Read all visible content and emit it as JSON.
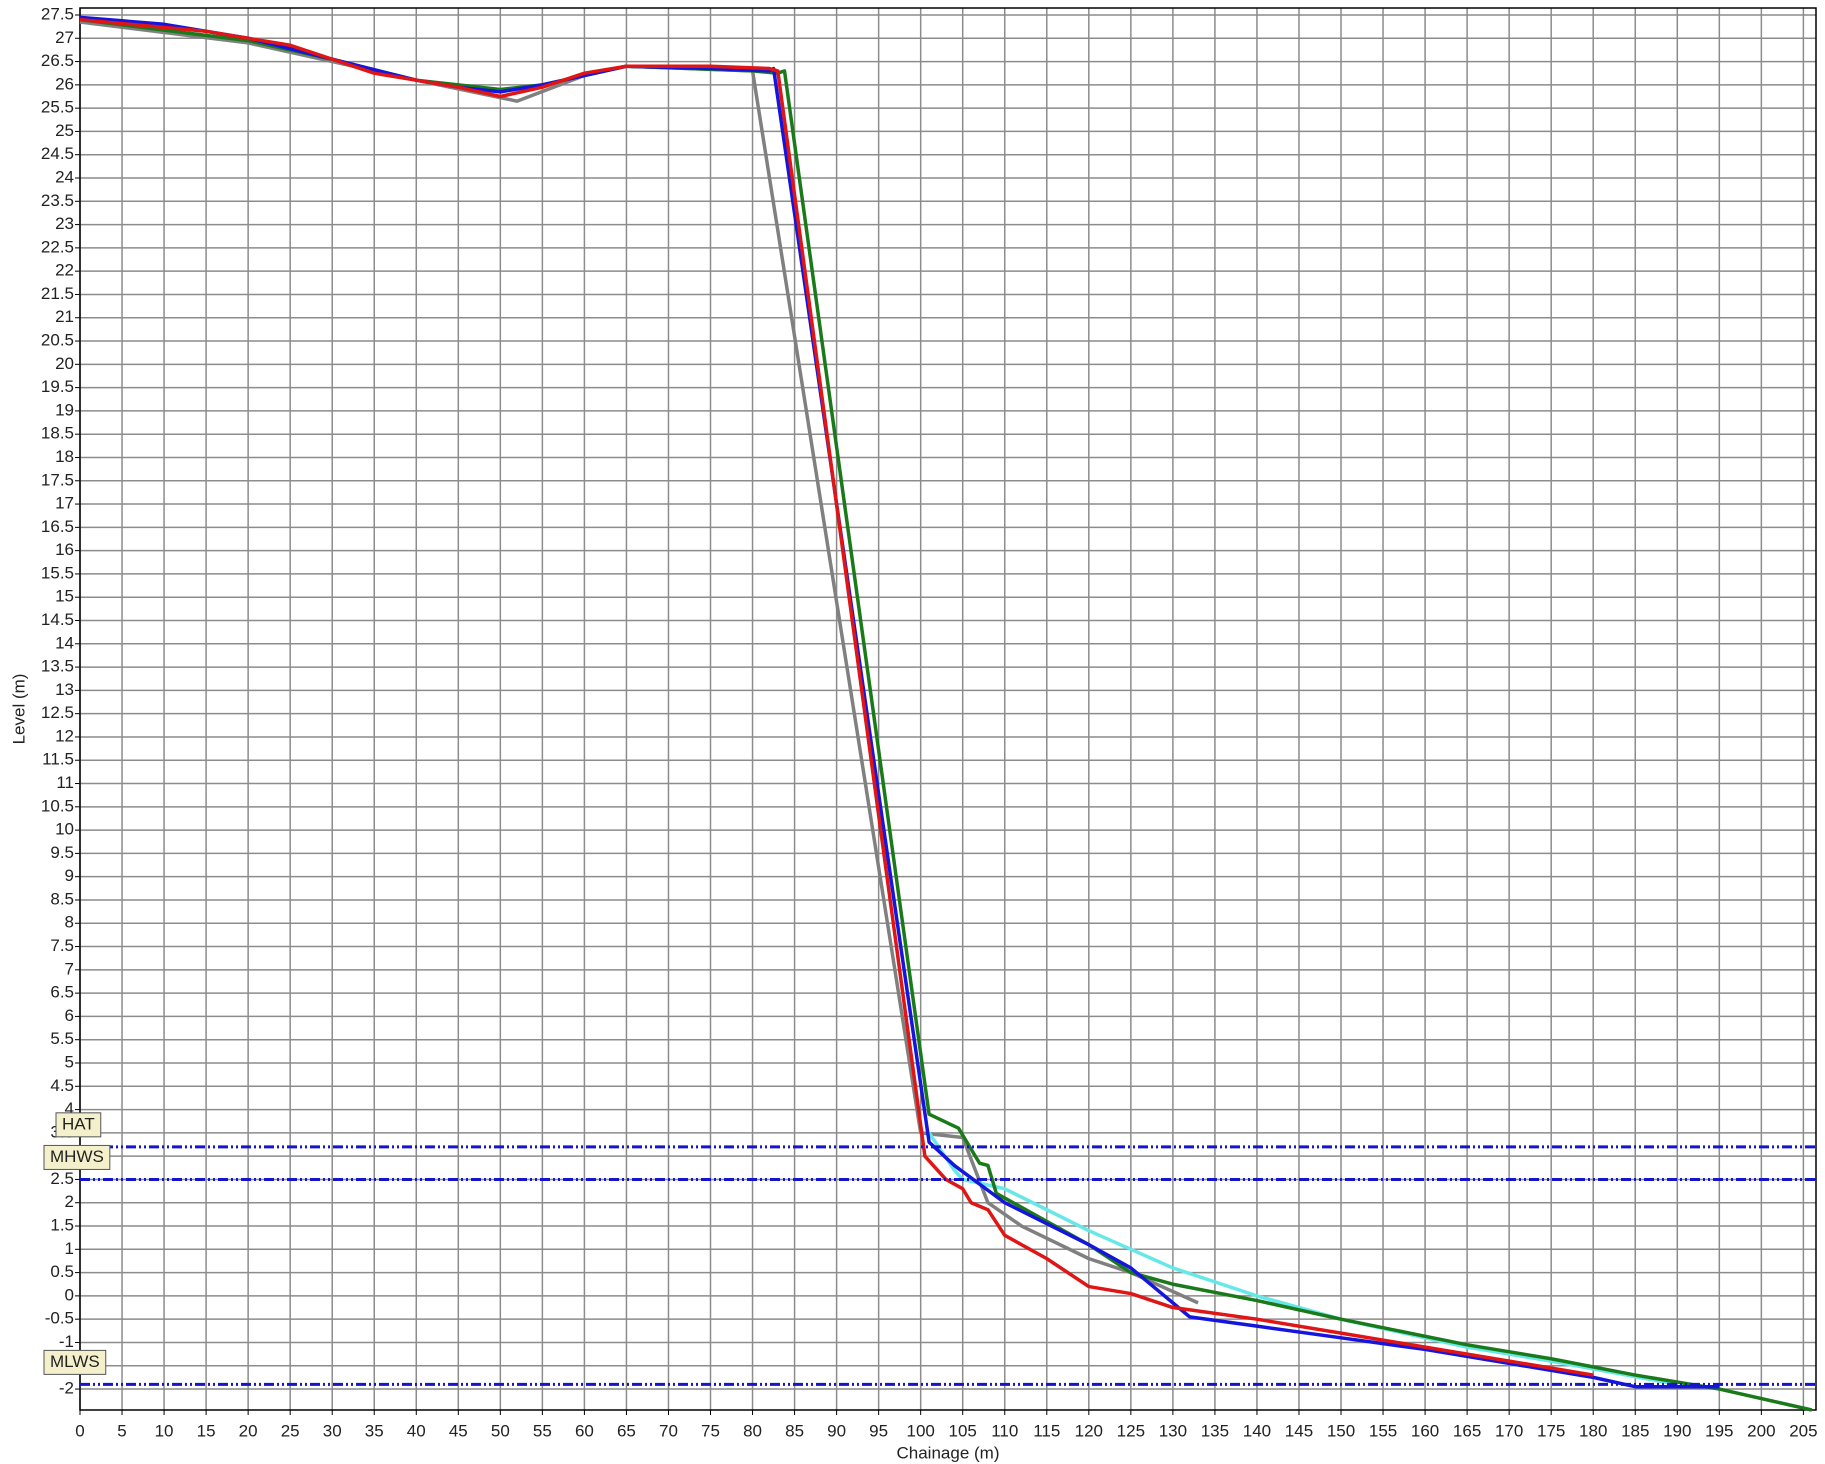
{
  "chart_data": {
    "type": "line",
    "x_label": "Chainage (m)",
    "y_label": "Level (m)",
    "xlim": [
      0,
      206.5
    ],
    "ylim": [
      -2.45,
      27.65
    ],
    "xticks": [
      0,
      5,
      10,
      15,
      20,
      25,
      30,
      35,
      40,
      45,
      50,
      55,
      60,
      65,
      70,
      75,
      80,
      85,
      90,
      95,
      100,
      105,
      110,
      115,
      120,
      125,
      130,
      135,
      140,
      145,
      150,
      155,
      160,
      165,
      170,
      175,
      180,
      185,
      190,
      195,
      200,
      205
    ],
    "yticks": [
      -2,
      -1.5,
      -1,
      -0.5,
      0,
      0.5,
      1,
      1.5,
      2,
      2.5,
      3,
      3.5,
      4,
      4.5,
      5,
      5.5,
      6,
      6.5,
      7,
      7.5,
      8,
      8.5,
      9,
      9.5,
      10,
      10.5,
      11,
      11.5,
      12,
      12.5,
      13,
      13.5,
      14,
      14.5,
      15,
      15.5,
      16,
      16.5,
      17,
      17.5,
      18,
      18.5,
      19,
      19.5,
      20,
      20.5,
      21,
      21.5,
      22,
      22.5,
      23,
      23.5,
      24,
      24.5,
      25,
      25.5,
      26,
      26.5,
      27,
      27.5
    ],
    "grid": true,
    "series": [
      {
        "color": "#808080",
        "x": [
          0,
          20,
          40,
          52,
          60,
          65,
          80,
          100,
          105,
          108,
          112,
          120,
          125,
          133
        ],
        "values": [
          27.35,
          26.9,
          26.1,
          25.65,
          26.2,
          26.4,
          26.3,
          3.5,
          3.4,
          2.0,
          1.5,
          0.8,
          0.5,
          -0.15
        ]
      },
      {
        "color": "#66e8e8",
        "x": [
          101,
          104,
          105,
          110,
          120,
          130,
          140,
          150,
          165,
          175,
          190
        ],
        "values": [
          3.5,
          2.7,
          2.5,
          2.3,
          1.4,
          0.6,
          0,
          -0.5,
          -1.1,
          -1.4,
          -1.9
        ]
      },
      {
        "color": "#1a7a1a",
        "x": [
          0,
          20,
          30,
          40,
          50,
          55,
          60,
          65,
          80,
          83,
          83.8,
          101,
          104.5,
          107,
          108,
          109,
          110,
          115,
          120,
          125,
          130,
          140,
          150,
          165,
          175,
          185,
          195,
          206
        ],
        "values": [
          27.4,
          26.95,
          26.55,
          26.1,
          25.9,
          26.0,
          26.2,
          26.4,
          26.3,
          26.25,
          26.3,
          3.9,
          3.6,
          2.85,
          2.8,
          2.2,
          2.1,
          1.6,
          1.1,
          0.5,
          0.25,
          -0.1,
          -0.5,
          -1.05,
          -1.35,
          -1.7,
          -2.0,
          -2.45
        ]
      },
      {
        "color": "#1515dd",
        "x": [
          0,
          10,
          20,
          30,
          40,
          45,
          50,
          55,
          60,
          65,
          75,
          82,
          82.5,
          101,
          104,
          110,
          120,
          125,
          132,
          140,
          150,
          160,
          170,
          180,
          185,
          195
        ],
        "values": [
          27.45,
          27.3,
          27.0,
          26.55,
          26.1,
          25.95,
          25.85,
          26.0,
          26.2,
          26.4,
          26.35,
          26.3,
          26.35,
          3.3,
          2.8,
          2.0,
          1.1,
          0.6,
          -0.45,
          -0.65,
          -0.9,
          -1.15,
          -1.45,
          -1.75,
          -1.95,
          -1.95
        ]
      },
      {
        "color": "#e01515",
        "x": [
          0,
          15,
          25,
          35,
          45,
          50,
          55,
          60,
          65,
          72,
          75,
          82,
          83,
          100.5,
          103,
          105,
          106,
          108,
          110,
          115,
          120,
          125,
          130,
          140,
          150,
          160,
          170,
          180
        ],
        "values": [
          27.4,
          27.15,
          26.85,
          26.25,
          25.95,
          25.75,
          25.95,
          26.25,
          26.4,
          26.4,
          26.4,
          26.35,
          26.3,
          3.0,
          2.5,
          2.3,
          2.0,
          1.85,
          1.3,
          0.8,
          0.2,
          0.05,
          -0.25,
          -0.5,
          -0.8,
          -1.1,
          -1.4,
          -1.7
        ]
      }
    ],
    "reference_lines": [
      {
        "label": "HAT",
        "value": 3.2,
        "color": "#1515cc"
      },
      {
        "label": "MHWS",
        "value": 2.5,
        "color": "#1515cc"
      },
      {
        "label": "MLWS",
        "value": -1.9,
        "color": "#1515cc"
      }
    ]
  }
}
